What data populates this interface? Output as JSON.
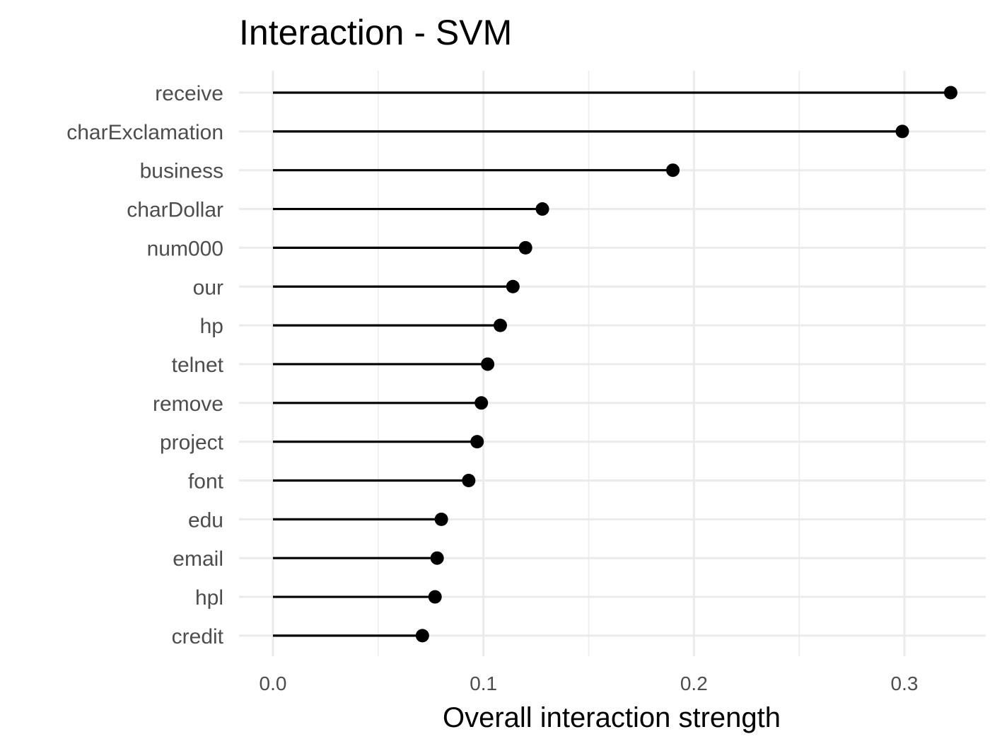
{
  "chart_data": {
    "type": "lollipop",
    "title": "Interaction - SVM",
    "xlabel": "Overall interaction strength",
    "ylabel": "",
    "xlim": [
      0,
      0.337
    ],
    "x_ticks": [
      0.0,
      0.1,
      0.2,
      0.3
    ],
    "x_tick_labels": [
      "0.0",
      "0.1",
      "0.2",
      "0.3"
    ],
    "grid": true,
    "legend": "none",
    "colors": {
      "marks": "#000000",
      "grid": "#ebebeb",
      "labels": "#4d4d4d"
    },
    "categories": [
      "receive",
      "charExclamation",
      "business",
      "charDollar",
      "num000",
      "our",
      "hp",
      "telnet",
      "remove",
      "project",
      "font",
      "edu",
      "email",
      "hpl",
      "credit"
    ],
    "values": [
      0.322,
      0.299,
      0.19,
      0.128,
      0.12,
      0.114,
      0.108,
      0.102,
      0.099,
      0.097,
      0.093,
      0.08,
      0.078,
      0.077,
      0.071
    ]
  }
}
